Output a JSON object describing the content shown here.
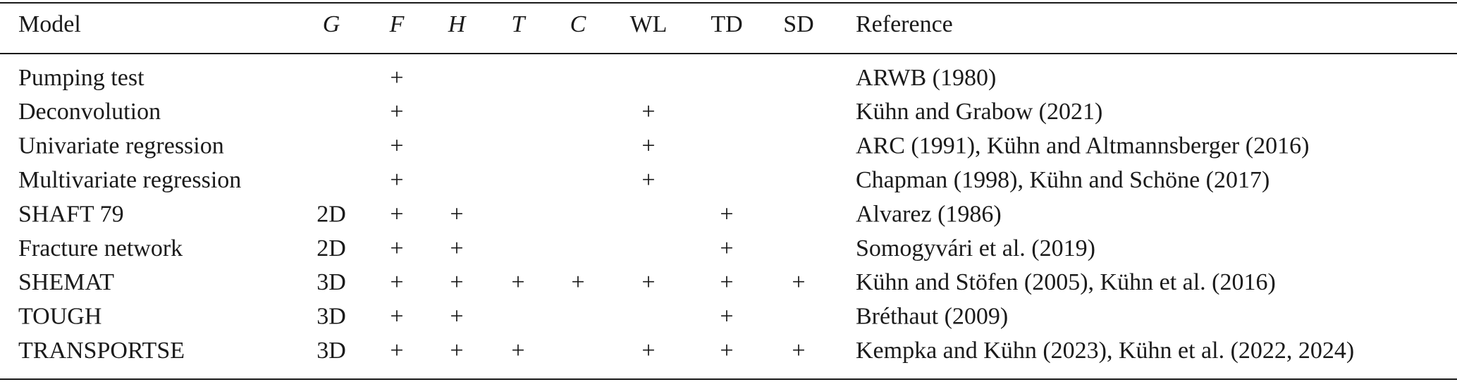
{
  "table": {
    "header": [
      "Model",
      "G",
      "F",
      "H",
      "T",
      "C",
      "WL",
      "TD",
      "SD",
      "Reference"
    ],
    "rows": [
      [
        "Pumping test",
        null,
        "+",
        null,
        null,
        null,
        null,
        null,
        null,
        "ARWB (1980)"
      ],
      [
        "Deconvolution",
        null,
        "+",
        null,
        null,
        null,
        "+",
        null,
        null,
        "Kühn and Grabow (2021)"
      ],
      [
        "Univariate regression",
        null,
        "+",
        null,
        null,
        null,
        "+",
        null,
        null,
        "ARC (1991), Kühn and Altmannsberger (2016)"
      ],
      [
        "Multivariate regression",
        null,
        "+",
        null,
        null,
        null,
        "+",
        null,
        null,
        "Chapman (1998), Kühn and Schöne (2017)"
      ],
      [
        "SHAFT 79",
        "2D",
        "+",
        "+",
        null,
        null,
        null,
        "+",
        null,
        "Alvarez (1986)"
      ],
      [
        "Fracture network",
        "2D",
        "+",
        "+",
        null,
        null,
        null,
        "+",
        null,
        "Somogyvári et al. (2019)"
      ],
      [
        "SHEMAT",
        "3D",
        "+",
        "+",
        "+",
        "+",
        "+",
        "+",
        "+",
        "Kühn and Stöfen (2005), Kühn et al. (2016)"
      ],
      [
        "TOUGH",
        "3D",
        "+",
        "+",
        null,
        null,
        null,
        "+",
        null,
        "Bréthaut (2009)"
      ],
      [
        "TRANSPORTSE",
        "3D",
        "+",
        "+",
        "+",
        null,
        "+",
        "+",
        "+",
        "Kempka and Kühn (2023), Kühn et al. (2022, 2024)"
      ]
    ]
  }
}
